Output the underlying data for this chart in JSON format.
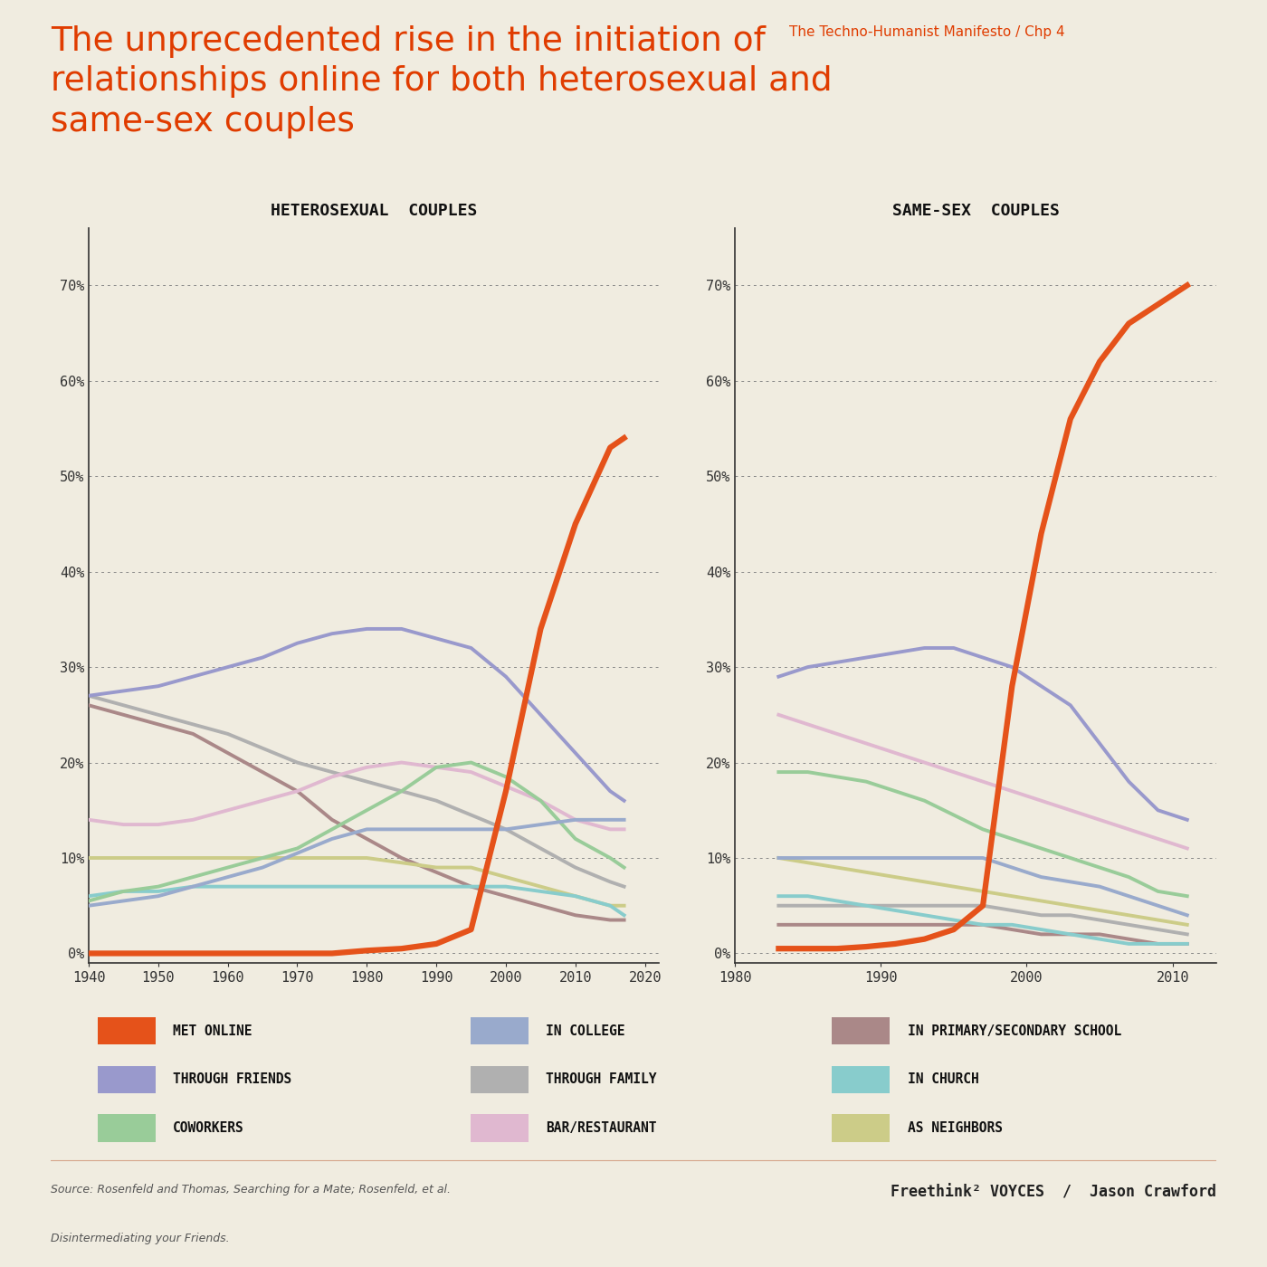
{
  "background_color": "#f0ece0",
  "title_main": "The unprecedented rise in the initiation of\nrelationships online for both heterosexual and\nsame-sex couples",
  "title_source": "The Techno-Humanist Manifesto / Chp 4",
  "title_color": "#e03c00",
  "source_text1": "Source: Rosenfeld and Thomas, Searching for a Mate; Rosenfeld, et al.",
  "source_text2": "Disintermediating your Friends.",
  "footer_right": "Freethink² VOYCES  /  Jason Crawford",
  "het_title": "HETEROSEXUAL  COUPLES",
  "ss_title": "SAME-SEX  COUPLES",
  "het_years": [
    1940,
    1945,
    1950,
    1955,
    1960,
    1965,
    1970,
    1975,
    1980,
    1985,
    1990,
    1995,
    2000,
    2005,
    2010,
    2015,
    2017
  ],
  "het_online": [
    0,
    0,
    0,
    0,
    0,
    0,
    0,
    0,
    0.3,
    0.5,
    1.0,
    2.5,
    17,
    34,
    45,
    53,
    54
  ],
  "het_friends": [
    27,
    27.5,
    28,
    29,
    30,
    31,
    32.5,
    33.5,
    34,
    34,
    33,
    32,
    29,
    25,
    21,
    17,
    16
  ],
  "het_coworkers": [
    5.5,
    6.5,
    7,
    8,
    9,
    10,
    11,
    13,
    15,
    17,
    19.5,
    20,
    18.5,
    16,
    12,
    10,
    9
  ],
  "het_college": [
    5,
    5.5,
    6,
    7,
    8,
    9,
    10.5,
    12,
    13,
    13,
    13,
    13,
    13,
    13.5,
    14,
    14,
    14
  ],
  "het_family": [
    27,
    26,
    25,
    24,
    23,
    21.5,
    20,
    19,
    18,
    17,
    16,
    14.5,
    13,
    11,
    9,
    7.5,
    7
  ],
  "het_bar": [
    14,
    13.5,
    13.5,
    14,
    15,
    16,
    17,
    18.5,
    19.5,
    20,
    19.5,
    19,
    17.5,
    16,
    14,
    13,
    13
  ],
  "het_primary": [
    26,
    25,
    24,
    23,
    21,
    19,
    17,
    14,
    12,
    10,
    8.5,
    7,
    6,
    5,
    4,
    3.5,
    3.5
  ],
  "het_church": [
    6,
    6.5,
    6.5,
    7,
    7,
    7,
    7,
    7,
    7,
    7,
    7,
    7,
    7,
    6.5,
    6,
    5,
    4
  ],
  "het_neighbors": [
    10,
    10,
    10,
    10,
    10,
    10,
    10,
    10,
    10,
    9.5,
    9,
    9,
    8,
    7,
    6,
    5,
    5
  ],
  "ss_years": [
    1983,
    1985,
    1987,
    1989,
    1991,
    1993,
    1995,
    1997,
    1999,
    2001,
    2003,
    2005,
    2007,
    2009,
    2011
  ],
  "ss_online": [
    0.5,
    0.5,
    0.5,
    0.7,
    1.0,
    1.5,
    2.5,
    5,
    28,
    44,
    56,
    62,
    66,
    68,
    70
  ],
  "ss_friends": [
    29,
    30,
    30.5,
    31,
    31.5,
    32,
    32,
    31,
    30,
    28,
    26,
    22,
    18,
    15,
    14
  ],
  "ss_coworkers": [
    19,
    19,
    18.5,
    18,
    17,
    16,
    14.5,
    13,
    12,
    11,
    10,
    9,
    8,
    6.5,
    6
  ],
  "ss_college": [
    10,
    10,
    10,
    10,
    10,
    10,
    10,
    10,
    9,
    8,
    7.5,
    7,
    6,
    5,
    4
  ],
  "ss_family": [
    5,
    5,
    5,
    5,
    5,
    5,
    5,
    5,
    4.5,
    4,
    4,
    3.5,
    3,
    2.5,
    2
  ],
  "ss_bar": [
    25,
    24,
    23,
    22,
    21,
    20,
    19,
    18,
    17,
    16,
    15,
    14,
    13,
    12,
    11
  ],
  "ss_primary": [
    3,
    3,
    3,
    3,
    3,
    3,
    3,
    3,
    2.5,
    2,
    2,
    2,
    1.5,
    1,
    1
  ],
  "ss_church": [
    6,
    6,
    5.5,
    5,
    4.5,
    4,
    3.5,
    3,
    3,
    2.5,
    2,
    1.5,
    1,
    1,
    1
  ],
  "ss_neighbors": [
    10,
    9.5,
    9,
    8.5,
    8,
    7.5,
    7,
    6.5,
    6,
    5.5,
    5,
    4.5,
    4,
    3.5,
    3
  ],
  "colors": {
    "online": "#e5521a",
    "friends": "#9999cc",
    "coworkers": "#99cc99",
    "college": "#99aacc",
    "family": "#b0b0b0",
    "bar": "#e0b8d0",
    "primary": "#aa8888",
    "church": "#88cccc",
    "neighbors": "#cccc88"
  },
  "line_width": 2.8,
  "online_lw": 4.5
}
